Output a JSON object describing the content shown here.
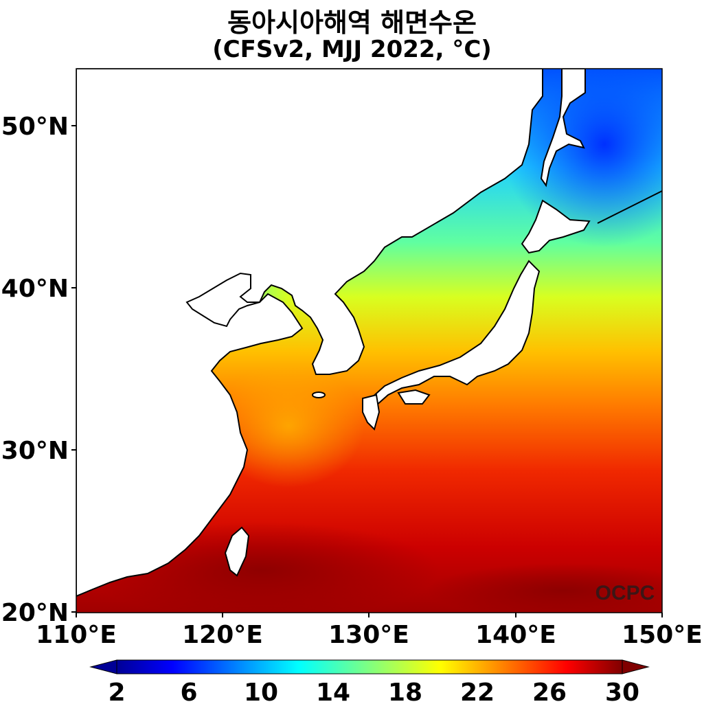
{
  "title": "동아시아해역 해면수온",
  "subtitle": "(CFSv2, MJJ 2022, °C)",
  "watermark": "OCPC",
  "map": {
    "lon_range": [
      110,
      150
    ],
    "lat_range": [
      20,
      53.5
    ],
    "x_ticks": [
      "110°E",
      "120°E",
      "130°E",
      "140°E",
      "150°E"
    ],
    "y_ticks": [
      "20°N",
      "30°N",
      "40°N",
      "50°N"
    ],
    "land_color": "#ffffff",
    "coastline_color": "#000000"
  },
  "colorbar": {
    "ticks": [
      "2",
      "6",
      "10",
      "14",
      "18",
      "22",
      "26",
      "30"
    ],
    "range": [
      2,
      30
    ],
    "colormap": "jet",
    "extend": "both"
  }
}
